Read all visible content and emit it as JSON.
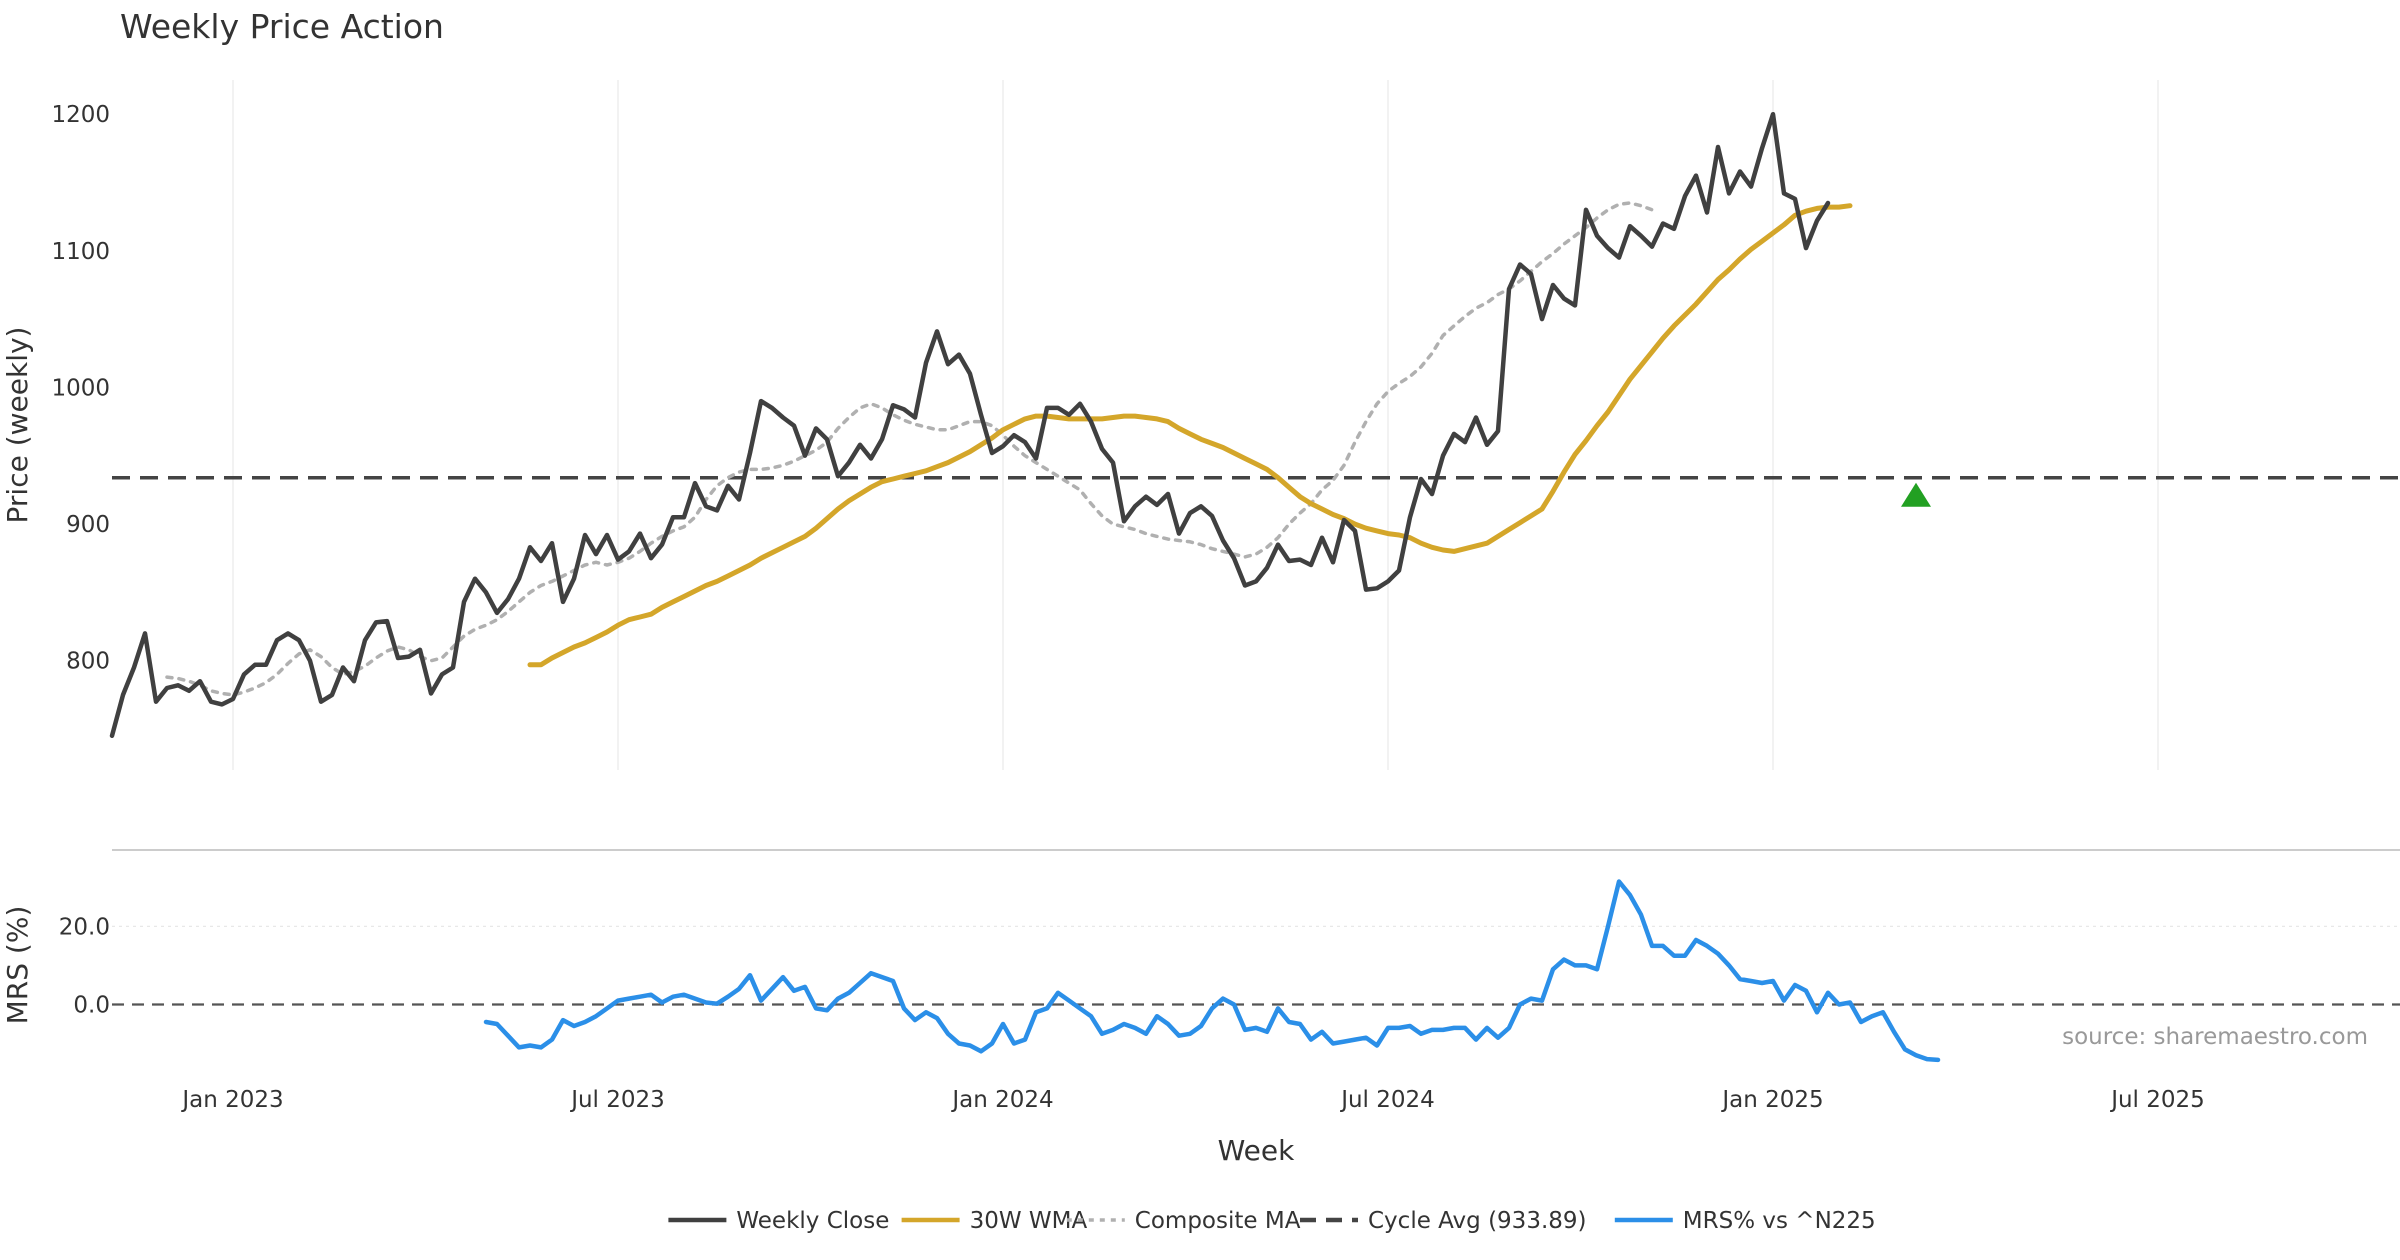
{
  "chart_data": {
    "type": "line",
    "title": "Weekly Price Action",
    "xlabel": "Week",
    "source_note": "source: sharemaestro.com",
    "colors": {
      "close": "#404040",
      "wma": "#d4a62a",
      "composite": "#b0b0b0",
      "cycle": "#444444",
      "mrs": "#2b8fe8",
      "signal": "#22a022",
      "grid": "#e8e8e8",
      "divider": "#cccccc"
    },
    "x_ticks": [
      "Jan 2023",
      "Jul 2023",
      "Jan 2024",
      "Jul 2024",
      "Jan 2025",
      "Jul 2025"
    ],
    "x_tick_weeks": [
      11,
      46,
      81,
      116,
      151,
      186
    ],
    "x_range": [
      0,
      208
    ],
    "price_panel": {
      "ylabel": "Price (weekly)",
      "ylim": [
        720,
        1225
      ],
      "y_ticks": [
        800,
        900,
        1000,
        1100,
        1200
      ],
      "cycle_avg": 933.89,
      "signal_markers": [
        {
          "week": 164,
          "value": 920
        }
      ],
      "series": [
        {
          "name": "Weekly Close",
          "start_week": 0,
          "values": [
            745,
            775,
            795,
            820,
            770,
            780,
            782,
            778,
            785,
            770,
            768,
            772,
            790,
            797,
            797,
            815,
            820,
            815,
            800,
            770,
            775,
            795,
            785,
            815,
            828,
            829,
            802,
            803,
            808,
            776,
            790,
            795,
            843,
            860,
            850,
            835,
            845,
            860,
            883,
            873,
            886,
            843,
            860,
            892,
            878,
            892,
            874,
            880,
            893,
            875,
            885,
            905,
            905,
            930,
            913,
            910,
            928,
            918,
            952,
            990,
            985,
            978,
            972,
            950,
            970,
            962,
            935,
            945,
            958,
            948,
            962,
            987,
            984,
            978,
            1018,
            1041,
            1017,
            1024,
            1010,
            980,
            952,
            957,
            965,
            960,
            948,
            985,
            985,
            980,
            988,
            975,
            955,
            945,
            902,
            913,
            920,
            914,
            922,
            893,
            908,
            913,
            906,
            888,
            875,
            855,
            858,
            868,
            885,
            873,
            874,
            870,
            890,
            872,
            903,
            895,
            852,
            853,
            858,
            866,
            905,
            933,
            922,
            950,
            966,
            960,
            978,
            958,
            968,
            1072,
            1090,
            1083,
            1050,
            1075,
            1065,
            1060,
            1130,
            1111,
            1102,
            1095,
            1118,
            1111,
            1103,
            1120,
            1116,
            1140,
            1155,
            1128,
            1176,
            1142,
            1158,
            1147,
            1175,
            1200,
            1142,
            1138,
            1102,
            1122,
            1135
          ]
        },
        {
          "name": "30W WMA",
          "start_week": 38,
          "values": [
            797,
            797,
            802,
            806,
            810,
            813,
            817,
            821,
            826,
            830,
            832,
            834,
            839,
            843,
            847,
            851,
            855,
            858,
            862,
            866,
            870,
            875,
            879,
            883,
            887,
            891,
            897,
            904,
            911,
            917,
            922,
            927,
            931,
            933,
            935,
            937,
            939,
            942,
            945,
            949,
            953,
            958,
            963,
            969,
            973,
            977,
            979,
            979,
            978,
            977,
            977,
            977,
            977,
            978,
            979,
            979,
            978,
            977,
            975,
            970,
            966,
            962,
            959,
            956,
            952,
            948,
            944,
            940,
            934,
            927,
            920,
            915,
            911,
            907,
            904,
            900,
            897,
            895,
            893,
            892,
            890,
            886,
            883,
            881,
            880,
            882,
            884,
            886,
            891,
            896,
            901,
            906,
            911,
            924,
            938,
            951,
            961,
            972,
            982,
            994,
            1006,
            1016,
            1026,
            1036,
            1045,
            1053,
            1061,
            1070,
            1079,
            1086,
            1094,
            1101,
            1107,
            1113,
            1119,
            1126,
            1129,
            1131,
            1132,
            1132,
            1133
          ]
        },
        {
          "name": "Composite MA",
          "start_week": 5,
          "values": [
            788,
            787,
            785,
            782,
            778,
            776,
            775,
            777,
            780,
            784,
            790,
            798,
            805,
            808,
            803,
            795,
            790,
            792,
            796,
            802,
            807,
            810,
            808,
            803,
            800,
            802,
            810,
            818,
            823,
            826,
            830,
            836,
            843,
            850,
            855,
            858,
            862,
            866,
            870,
            872,
            870,
            872,
            875,
            880,
            886,
            891,
            895,
            898,
            905,
            918,
            928,
            934,
            938,
            940,
            940,
            941,
            943,
            946,
            950,
            954,
            960,
            970,
            978,
            985,
            988,
            985,
            980,
            976,
            973,
            971,
            969,
            969,
            972,
            975,
            975,
            972,
            965,
            957,
            950,
            945,
            940,
            935,
            930,
            925,
            915,
            906,
            900,
            898,
            896,
            893,
            891,
            889,
            888,
            887,
            885,
            882,
            880,
            878,
            876,
            878,
            883,
            890,
            900,
            908,
            915,
            925,
            932,
            943,
            960,
            975,
            988,
            997,
            1003,
            1008,
            1015,
            1025,
            1038,
            1045,
            1052,
            1058,
            1062,
            1068,
            1072,
            1078,
            1085,
            1092,
            1098,
            1105,
            1111,
            1117,
            1124,
            1130,
            1134,
            1135,
            1133,
            1130
          ]
        }
      ]
    },
    "mrs_panel": {
      "ylabel": "MRS (%)",
      "ylim": [
        -15.5,
        37
      ],
      "y_ticks": [
        0.0,
        20.0
      ],
      "y_tick_labels": [
        "0.0",
        "20.0"
      ],
      "zero_line": true,
      "series": [
        {
          "name": "MRS% vs ^N225",
          "start_week": 34,
          "values": [
            -4.5,
            -5,
            -8,
            -11,
            -10.5,
            -11,
            -9,
            -4,
            -5.5,
            -4.5,
            -3,
            -1,
            1,
            1.5,
            2,
            2.5,
            0.5,
            2,
            2.5,
            1.5,
            0.5,
            0.2,
            2,
            4,
            7.5,
            1,
            4,
            7,
            3.5,
            4.5,
            -1,
            -1.5,
            1.5,
            3,
            5.5,
            8,
            7,
            6,
            -1,
            -4,
            -2,
            -3.5,
            -7.5,
            -10,
            -10.5,
            -12,
            -10,
            -5,
            -10,
            -9,
            -2,
            -1,
            3,
            1,
            -1,
            -3,
            -7.5,
            -6.5,
            -5,
            -6,
            -7.5,
            -3,
            -5,
            -8,
            -7.5,
            -5.5,
            -1,
            1.5,
            0,
            -6.5,
            -6,
            -7,
            -1,
            -4.5,
            -5,
            -9,
            -7,
            -10,
            -9.5,
            -9,
            -8.5,
            -10.5,
            -6,
            -6,
            -5.5,
            -7.5,
            -6.5,
            -6.5,
            -6,
            -6,
            -9,
            -6,
            -8.5,
            -6,
            0,
            1.5,
            1,
            9,
            11.5,
            10,
            10,
            9,
            20,
            31.5,
            28,
            23,
            15,
            15,
            12.5,
            12.5,
            16.5,
            15,
            13,
            10,
            6.5,
            6,
            5.5,
            6,
            1,
            5,
            3.5,
            -2,
            3,
            0,
            0.5,
            -4.5,
            -3,
            -2,
            -7,
            -11.5,
            -13,
            -14,
            -14.2
          ]
        }
      ]
    },
    "legend": [
      {
        "label": "Weekly Close",
        "style": "solid",
        "color": "#404040"
      },
      {
        "label": "30W WMA",
        "style": "solid",
        "color": "#d4a62a"
      },
      {
        "label": "Composite MA",
        "style": "dotted",
        "color": "#b0b0b0"
      },
      {
        "label": "Cycle Avg (933.89)",
        "style": "dashed",
        "color": "#444444"
      },
      {
        "label": "MRS% vs ^N225",
        "style": "solid",
        "color": "#2b8fe8"
      }
    ]
  }
}
